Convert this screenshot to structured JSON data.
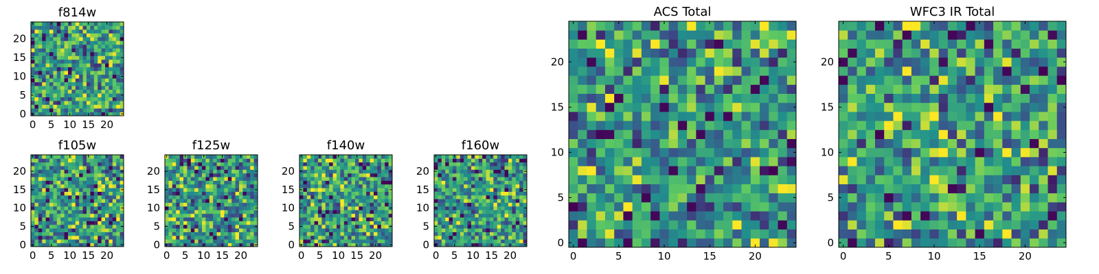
{
  "chart_data": [
    {
      "type": "heatmap",
      "title": "f814w",
      "grid": [
        25,
        25
      ],
      "xlim": [
        -0.5,
        24.5
      ],
      "ylim": [
        -0.5,
        24.5
      ],
      "xticks": [
        0,
        5,
        10,
        15,
        20
      ],
      "yticks": [
        0,
        5,
        10,
        15,
        20
      ],
      "colormap": "viridis",
      "seed": 11
    },
    {
      "type": "heatmap",
      "title": "f105w",
      "grid": [
        25,
        25
      ],
      "xlim": [
        -0.5,
        24.5
      ],
      "ylim": [
        -0.5,
        24.5
      ],
      "xticks": [
        0,
        5,
        10,
        15,
        20
      ],
      "yticks": [
        0,
        5,
        10,
        15,
        20
      ],
      "colormap": "viridis",
      "seed": 23
    },
    {
      "type": "heatmap",
      "title": "f125w",
      "grid": [
        25,
        25
      ],
      "xlim": [
        -0.5,
        24.5
      ],
      "ylim": [
        -0.5,
        24.5
      ],
      "xticks": [
        0,
        5,
        10,
        15,
        20
      ],
      "yticks": [
        0,
        5,
        10,
        15,
        20
      ],
      "colormap": "viridis",
      "seed": 37
    },
    {
      "type": "heatmap",
      "title": "f140w",
      "grid": [
        25,
        25
      ],
      "xlim": [
        -0.5,
        24.5
      ],
      "ylim": [
        -0.5,
        24.5
      ],
      "xticks": [
        0,
        5,
        10,
        15,
        20
      ],
      "yticks": [
        0,
        5,
        10,
        15,
        20
      ],
      "colormap": "viridis",
      "seed": 41
    },
    {
      "type": "heatmap",
      "title": "f160w",
      "grid": [
        25,
        25
      ],
      "xlim": [
        -0.5,
        24.5
      ],
      "ylim": [
        -0.5,
        24.5
      ],
      "xticks": [
        0,
        5,
        10,
        15,
        20
      ],
      "yticks": [
        0,
        5,
        10,
        15,
        20
      ],
      "colormap": "viridis",
      "seed": 53
    },
    {
      "type": "heatmap",
      "title": "ACS Total",
      "grid": [
        25,
        25
      ],
      "xlim": [
        -0.5,
        24.5
      ],
      "ylim": [
        -0.5,
        24.5
      ],
      "xticks": [
        0,
        5,
        10,
        15,
        20
      ],
      "yticks": [
        0,
        5,
        10,
        15,
        20
      ],
      "colormap": "viridis",
      "seed": 67
    },
    {
      "type": "heatmap",
      "title": "WFC3 IR Total",
      "grid": [
        25,
        25
      ],
      "xlim": [
        -0.5,
        24.5
      ],
      "ylim": [
        -0.5,
        24.5
      ],
      "xticks": [
        0,
        5,
        10,
        15,
        20
      ],
      "yticks": [
        0,
        5,
        10,
        15,
        20
      ],
      "colormap": "viridis",
      "seed": 79
    }
  ]
}
